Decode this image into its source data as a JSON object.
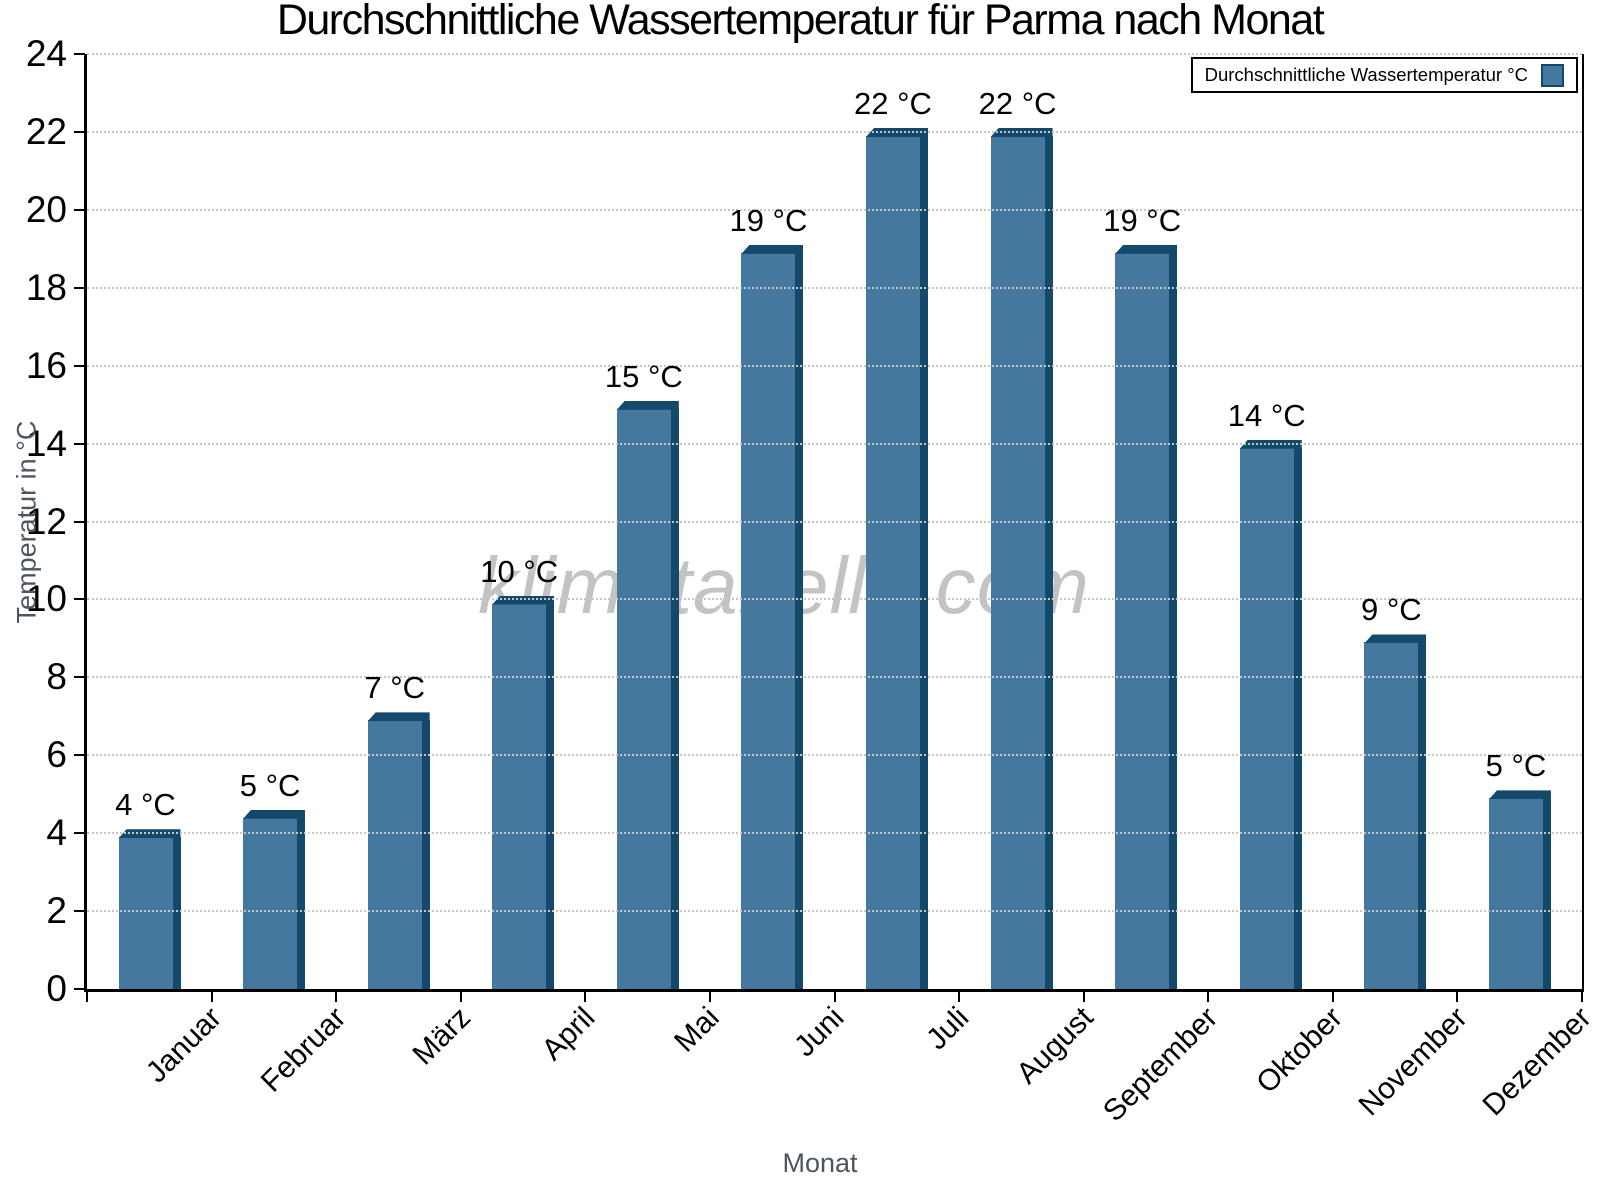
{
  "watermark": "klimatabelle.com",
  "legend": {
    "entries": [
      "Durchschnittliche Wassertemperatur °C"
    ]
  },
  "colors": {
    "bar_fill": "#45789E",
    "bar_shadow": "#14496B",
    "grid": "#c6c6c6",
    "axis": "#000000",
    "axis_title_text": "#4d565e",
    "watermark_text": "#3c3c3c"
  },
  "chart_data": {
    "type": "bar",
    "title": "Durchschnittliche Wassertemperatur für Parma nach Monat",
    "xlabel": "Monat",
    "ylabel": "Temperatur in °C",
    "categories": [
      "Januar",
      "Februar",
      "März",
      "April",
      "Mai",
      "Juni",
      "Juli",
      "August",
      "September",
      "Oktober",
      "November",
      "Dezember"
    ],
    "values": [
      4.1,
      4.6,
      7.1,
      10.1,
      15.1,
      19.1,
      22.1,
      22.1,
      19.1,
      14.1,
      9.1,
      5.1
    ],
    "bar_labels": [
      "4 °C",
      "5 °C",
      "7 °C",
      "10 °C",
      "15 °C",
      "19 °C",
      "22 °C",
      "22 °C",
      "19 °C",
      "14 °C",
      "9 °C",
      "5 °C"
    ],
    "ylim": [
      0,
      24
    ],
    "ytick_step": 2,
    "grid": "horizontal dotted",
    "legend_position": "top-right",
    "legend_entries": [
      "Durchschnittliche Wassertemperatur °C"
    ]
  }
}
